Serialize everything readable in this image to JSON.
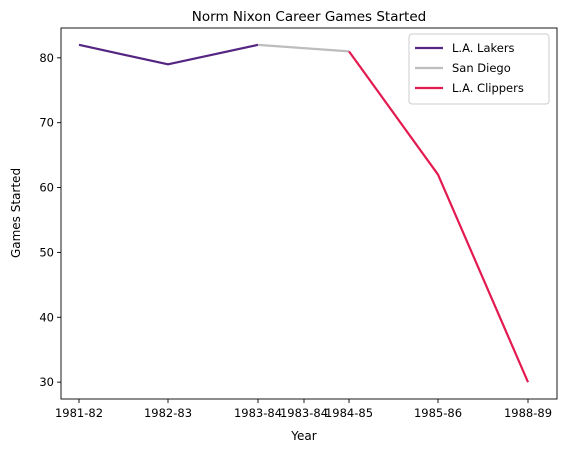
{
  "chart_data": {
    "type": "line",
    "title": "Norm Nixon Career Games Started",
    "xlabel": "Year",
    "ylabel": "Games Started",
    "x_ticks": [
      "1981-82",
      "1982-83",
      "1983-84",
      "1983-84",
      "1984-85",
      "1985-86",
      "1988-89"
    ],
    "y_ticks": [
      30,
      40,
      50,
      60,
      70,
      80
    ],
    "ylim": [
      27.4,
      84.6
    ],
    "grid": false,
    "legend_position": "top-right",
    "series": [
      {
        "name": "L.A. Lakers",
        "color": "#552583",
        "points": [
          {
            "x": "1981-82",
            "y": 82
          },
          {
            "x": "1982-83",
            "y": 79
          },
          {
            "x": "1983-84",
            "y": 82
          }
        ]
      },
      {
        "name": "San Diego",
        "color": "#bdbdbd",
        "points": [
          {
            "x": "1983-84",
            "y": 82
          },
          {
            "x": "1984-85",
            "y": 81
          }
        ]
      },
      {
        "name": "L.A. Clippers",
        "color": "#e31a4f",
        "points": [
          {
            "x": "1984-85",
            "y": 81
          },
          {
            "x": "1985-86",
            "y": 62
          },
          {
            "x": "1988-89",
            "y": 30
          }
        ]
      }
    ]
  }
}
